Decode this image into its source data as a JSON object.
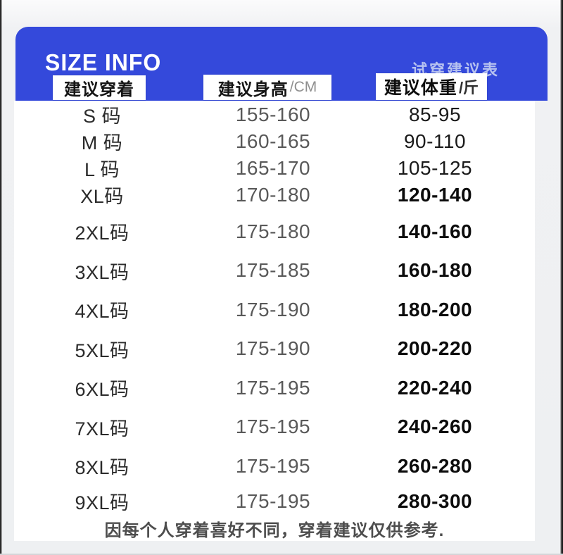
{
  "header": {
    "title": "SIZE INFO",
    "subtitle": "试穿建议表",
    "columns": [
      {
        "label": "建议穿着",
        "unit": ""
      },
      {
        "label": "建议身高",
        "unit": "/CM"
      },
      {
        "label": "建议体重",
        "unit": "/斤"
      }
    ]
  },
  "table": {
    "rows": [
      {
        "size": "S 码",
        "height": "155-160",
        "weight": "85-95"
      },
      {
        "size": "M 码",
        "height": "160-165",
        "weight": "90-110"
      },
      {
        "size": "L 码",
        "height": "165-170",
        "weight": "105-125"
      },
      {
        "size": "XL码",
        "height": "170-180",
        "weight": "120-140"
      },
      {
        "size": "2XL码",
        "height": "175-180",
        "weight": "140-160"
      },
      {
        "size": "3XL码",
        "height": "175-185",
        "weight": "160-180"
      },
      {
        "size": "4XL码",
        "height": "175-190",
        "weight": "180-200"
      },
      {
        "size": "5XL码",
        "height": "175-190",
        "weight": "200-220"
      },
      {
        "size": "6XL码",
        "height": "175-195",
        "weight": "220-240"
      },
      {
        "size": "7XL码",
        "height": "175-195",
        "weight": "240-260"
      },
      {
        "size": "8XL码",
        "height": "175-195",
        "weight": "260-280"
      },
      {
        "size": "9XL码",
        "height": "175-195",
        "weight": "280-300"
      }
    ]
  },
  "footer": {
    "note": "因每个人穿着喜好不同，穿着建议仅供参考."
  },
  "colors": {
    "header_blue": "#3449DB",
    "subtitle_text": "#B7C2F0",
    "height_text": "#595959",
    "weight_text": "#0C0C0C"
  }
}
